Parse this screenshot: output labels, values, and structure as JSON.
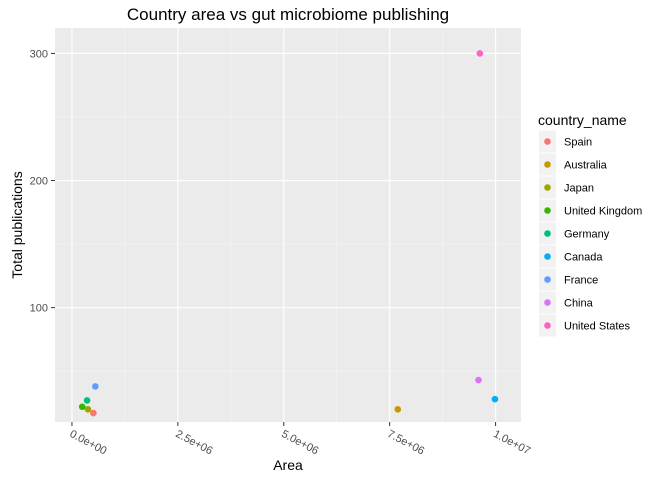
{
  "chart_data": {
    "type": "scatter",
    "title": "Country area vs gut microbiome publishing",
    "xlabel": "Area",
    "ylabel": "Total publications",
    "xlim": [
      -400000,
      10600000
    ],
    "ylim": [
      -500,
      320
    ],
    "x_ticks": [
      {
        "value": 0,
        "label": "0.0e+00"
      },
      {
        "value": 2500000,
        "label": "2.5e+06"
      },
      {
        "value": 5000000,
        "label": "5.0e+06"
      },
      {
        "value": 7500000,
        "label": "7.5e+06"
      },
      {
        "value": 10000000,
        "label": "1.0e+07"
      }
    ],
    "y_ticks": [
      {
        "value": 100,
        "label": "100"
      },
      {
        "value": 200,
        "label": "200"
      },
      {
        "value": 300,
        "label": "300"
      }
    ],
    "grid": true,
    "legend": {
      "title": "country_name",
      "placement": "right",
      "entries": [
        {
          "name": "Spain",
          "color": "#F8766D"
        },
        {
          "name": "Australia",
          "color": "#C49A00"
        },
        {
          "name": "Japan",
          "color": "#99A800"
        },
        {
          "name": "United Kingdom",
          "color": "#39B600"
        },
        {
          "name": "Germany",
          "color": "#00BF7D"
        },
        {
          "name": "Canada",
          "color": "#00B0F6"
        },
        {
          "name": "France",
          "color": "#619CFF"
        },
        {
          "name": "China",
          "color": "#DB72FB"
        },
        {
          "name": "United States",
          "color": "#FF61C3"
        }
      ]
    },
    "points": [
      {
        "country": "Spain",
        "x": 505990,
        "y": 17
      },
      {
        "country": "Australia",
        "x": 7692024,
        "y": 20
      },
      {
        "country": "Japan",
        "x": 377975,
        "y": 20
      },
      {
        "country": "United Kingdom",
        "x": 242495,
        "y": 22
      },
      {
        "country": "Germany",
        "x": 357386,
        "y": 27
      },
      {
        "country": "Canada",
        "x": 9984670,
        "y": 28
      },
      {
        "country": "France",
        "x": 551695,
        "y": 38
      },
      {
        "country": "China",
        "x": 9596961,
        "y": 43
      },
      {
        "country": "United States",
        "x": 9629091,
        "y": 300
      }
    ]
  }
}
